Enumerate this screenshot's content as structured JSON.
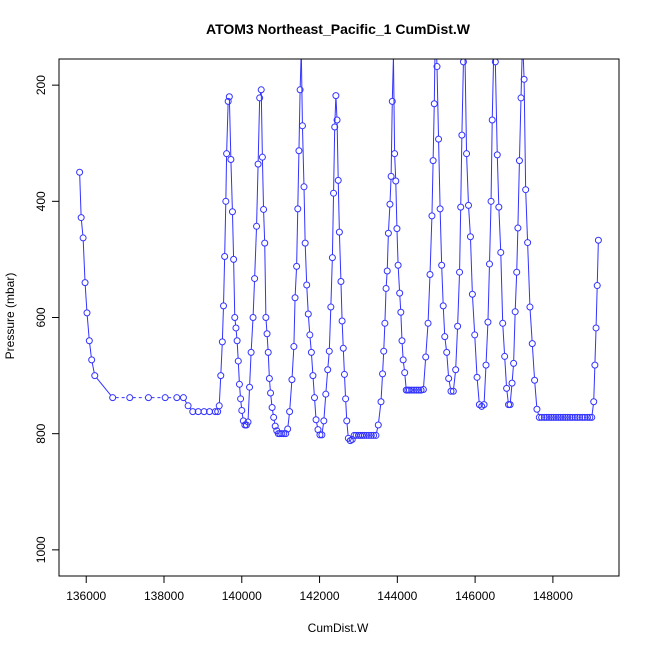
{
  "chart_data": {
    "type": "scatter",
    "title": "ATOM3 Northeast_Pacific_1 CumDist.W",
    "xlabel": "CumDist.W",
    "ylabel": "Pressure (mbar)",
    "xlim": [
      135300,
      149700
    ],
    "ylim": [
      1045,
      155
    ],
    "y_reversed": true,
    "xticks": [
      136000,
      138000,
      140000,
      142000,
      144000,
      146000,
      148000
    ],
    "yticks": [
      200,
      400,
      600,
      800,
      1000
    ],
    "xtick_labels": [
      "136000",
      "138000",
      "140000",
      "142000",
      "144000",
      "146000",
      "148000"
    ],
    "ytick_labels": [
      "200",
      "400",
      "600",
      "800",
      "1000"
    ],
    "grid": false,
    "legend": "none",
    "colors": {
      "series": "#3333ff",
      "axis": "#000000",
      "background": "#ffffff"
    },
    "series": [
      {
        "style": "line-with-open-circles; flat 740-760 mbar segment drawn dashed",
        "x": [
          135830,
          135870,
          135920,
          135970,
          136020,
          136080,
          136140,
          136220,
          136680,
          137120,
          137600,
          138030,
          138330,
          138500,
          138620,
          138740,
          138880,
          139030,
          139170,
          139320,
          139380,
          139420,
          139460,
          139500,
          139530,
          139560,
          139590,
          139610,
          139650,
          139680,
          139720,
          139760,
          139790,
          139820,
          139850,
          139880,
          139910,
          139940,
          139970,
          140000,
          140040,
          140080,
          140120,
          140160,
          140200,
          140240,
          140290,
          140330,
          140380,
          140420,
          140460,
          140500,
          140530,
          140560,
          140590,
          140620,
          140650,
          140680,
          140710,
          140740,
          140780,
          140820,
          140860,
          140900,
          140940,
          140980,
          141030,
          141080,
          141130,
          141180,
          141230,
          141290,
          141340,
          141370,
          141410,
          141440,
          141470,
          141500,
          141530,
          141560,
          141600,
          141630,
          141670,
          141710,
          141750,
          141790,
          141830,
          141870,
          141910,
          141960,
          142010,
          142060,
          142110,
          142160,
          142210,
          142250,
          142290,
          142330,
          142360,
          142390,
          142420,
          142450,
          142480,
          142510,
          142550,
          142580,
          142610,
          142640,
          142670,
          142700,
          142740,
          142790,
          142840,
          142890,
          142940,
          143000,
          143050,
          143100,
          143150,
          143210,
          143270,
          143330,
          143390,
          143450,
          143510,
          143580,
          143620,
          143650,
          143680,
          143710,
          143740,
          143770,
          143810,
          143840,
          143870,
          143900,
          143930,
          143960,
          143990,
          144020,
          144060,
          144090,
          144120,
          144150,
          144190,
          144230,
          144270,
          144310,
          144370,
          144430,
          144490,
          144550,
          144610,
          144670,
          144730,
          144790,
          144840,
          144890,
          144920,
          144950,
          144980,
          145020,
          145060,
          145100,
          145140,
          145180,
          145220,
          145270,
          145320,
          145380,
          145440,
          145500,
          145550,
          145600,
          145630,
          145660,
          145700,
          145740,
          145780,
          145830,
          145880,
          145930,
          145990,
          146050,
          146110,
          146170,
          146230,
          146280,
          146330,
          146370,
          146410,
          146440,
          146480,
          146520,
          146570,
          146610,
          146660,
          146710,
          146760,
          146810,
          146860,
          146900,
          146950,
          146990,
          147030,
          147070,
          147100,
          147140,
          147180,
          147220,
          147260,
          147300,
          147350,
          147410,
          147470,
          147530,
          147590,
          147650,
          147710,
          147780,
          147840,
          147900,
          147960,
          148020,
          148080,
          148140,
          148200,
          148260,
          148320,
          148380,
          148440,
          148500,
          148570,
          148630,
          148690,
          148760,
          148820,
          148890,
          148950,
          149000,
          149050,
          149080,
          149110,
          149140,
          149170
        ],
        "y": [
          350,
          428,
          463,
          540,
          592,
          640,
          673,
          700,
          738,
          738,
          738,
          738,
          738,
          738,
          752,
          762,
          762,
          762,
          762,
          762,
          762,
          752,
          700,
          642,
          580,
          495,
          400,
          318,
          228,
          220,
          328,
          418,
          500,
          600,
          618,
          640,
          675,
          715,
          740,
          760,
          778,
          785,
          785,
          780,
          720,
          660,
          600,
          533,
          443,
          336,
          222,
          208,
          324,
          414,
          472,
          600,
          628,
          660,
          705,
          730,
          755,
          772,
          787,
          795,
          800,
          800,
          800,
          800,
          800,
          792,
          762,
          707,
          650,
          566,
          512,
          413,
          313,
          208,
          140,
          270,
          375,
          472,
          544,
          594,
          630,
          660,
          700,
          738,
          776,
          793,
          802,
          802,
          778,
          732,
          690,
          658,
          582,
          497,
          386,
          272,
          218,
          260,
          364,
          453,
          538,
          606,
          653,
          698,
          740,
          778,
          808,
          812,
          810,
          803,
          803,
          803,
          803,
          803,
          803,
          803,
          803,
          803,
          803,
          803,
          785,
          745,
          697,
          658,
          610,
          550,
          520,
          455,
          405,
          357,
          228,
          150,
          318,
          365,
          447,
          510,
          558,
          591,
          640,
          673,
          695,
          725,
          725,
          725,
          725,
          725,
          725,
          725,
          725,
          724,
          668,
          610,
          526,
          425,
          330,
          232,
          90,
          168,
          293,
          413,
          510,
          580,
          633,
          660,
          705,
          727,
          727,
          690,
          615,
          522,
          410,
          286,
          160,
          150,
          318,
          407,
          461,
          560,
          630,
          703,
          750,
          753,
          750,
          682,
          608,
          508,
          400,
          260,
          140,
          160,
          320,
          410,
          488,
          610,
          667,
          722,
          750,
          750,
          713,
          679,
          590,
          522,
          446,
          330,
          222,
          120,
          190,
          380,
          471,
          582,
          645,
          708,
          758,
          772,
          772,
          772,
          772,
          772,
          772,
          772,
          772,
          772,
          772,
          772,
          772,
          772,
          772,
          772,
          772,
          772,
          772,
          772,
          772,
          772,
          772,
          772,
          745,
          682,
          618,
          545,
          467
        ]
      }
    ]
  }
}
